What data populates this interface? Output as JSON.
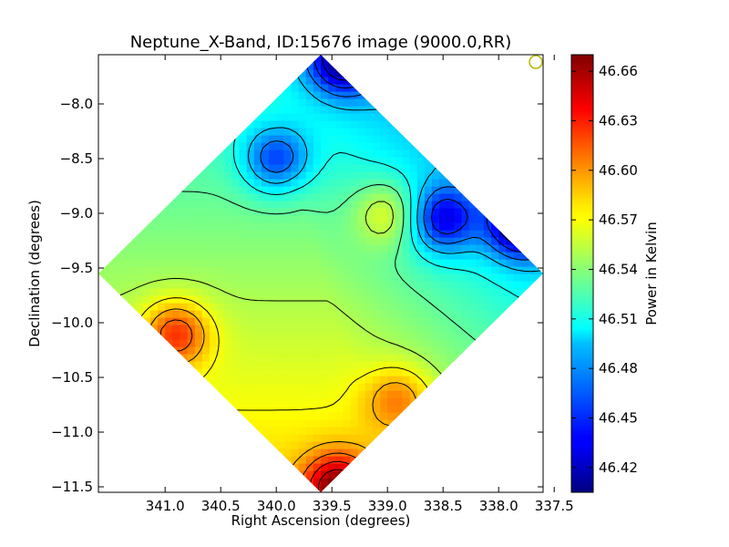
{
  "chart_data": {
    "type": "heatmap",
    "title": "Neptune_X-Band, ID:15676 image (9000.0,RR)",
    "xlabel": "Right Ascension (degrees)",
    "ylabel": "Declination (degrees)",
    "colorbar_label": "Power in Kelvin",
    "xlim": [
      341.6,
      337.6
    ],
    "ylim": [
      -11.55,
      -7.55
    ],
    "xticks": [
      "341.0",
      "340.5",
      "340.0",
      "339.5",
      "339.0",
      "338.5",
      "338.0",
      "337.5"
    ],
    "yticks": [
      "-8.0",
      "-8.5",
      "-9.0",
      "-9.5",
      "-10.0",
      "-10.5",
      "-11.0",
      "-11.5"
    ],
    "colorbar_range": [
      46.405,
      46.67
    ],
    "colorbar_ticks": [
      "46.42",
      "46.45",
      "46.48",
      "46.51",
      "46.54",
      "46.57",
      "46.60",
      "46.63",
      "46.66"
    ],
    "colormap": "jet",
    "grid": false,
    "beam_marker_color": "#b5b800",
    "map_corners": {
      "top": [
        339.6,
        -7.55
      ],
      "right": [
        337.6,
        -9.55
      ],
      "bottom": [
        339.6,
        -11.55
      ],
      "left": [
        341.6,
        -9.55
      ]
    },
    "value_field_notes": "high power toward south (bottom); low power toward north-east edge",
    "hotspots": [
      {
        "ra": 339.45,
        "dec": -11.5,
        "value": 46.66
      },
      {
        "ra": 340.9,
        "dec": -10.1,
        "value": 46.63
      },
      {
        "ra": 339.0,
        "dec": -9.0,
        "value": 46.6
      },
      {
        "ra": 338.9,
        "dec": -10.7,
        "value": 46.6
      }
    ],
    "coldspots": [
      {
        "ra": 339.4,
        "dec": -7.6,
        "value": 46.43
      },
      {
        "ra": 337.8,
        "dec": -9.1,
        "value": 46.42
      },
      {
        "ra": 338.5,
        "dec": -9.05,
        "value": 46.45
      },
      {
        "ra": 340.0,
        "dec": -8.5,
        "value": 46.46
      }
    ]
  }
}
